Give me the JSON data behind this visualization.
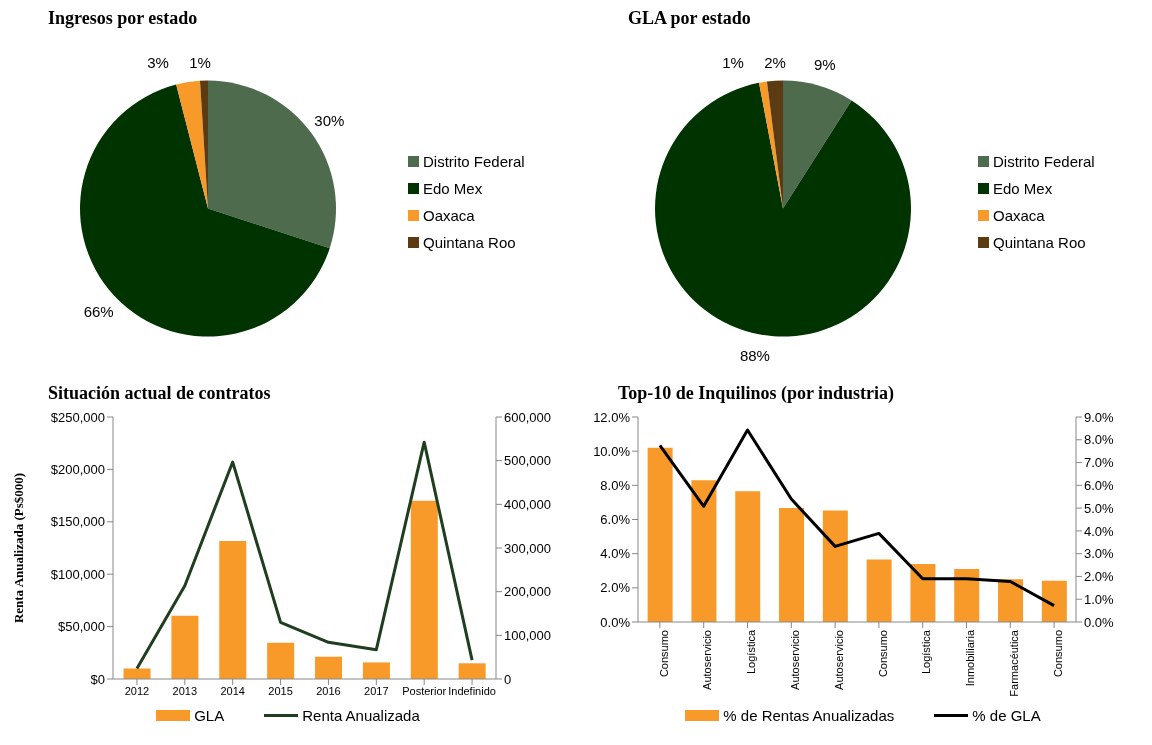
{
  "chart_data": [
    {
      "type": "pie",
      "title": "Ingresos por estado",
      "categories": [
        "Distrito Federal",
        "Edo Mex",
        "Oaxaca",
        "Quintana Roo"
      ],
      "values": [
        30,
        66,
        3,
        1
      ],
      "value_labels": [
        "30%",
        "66%",
        "3%",
        "1%"
      ],
      "colors": [
        "#4e6b4e",
        "#003300",
        "#f79a2a",
        "#5c3a12"
      ],
      "legend": "right"
    },
    {
      "type": "pie",
      "title": "GLA por estado",
      "categories": [
        "Distrito Federal",
        "Edo Mex",
        "Oaxaca",
        "Quintana Roo"
      ],
      "values": [
        9,
        88,
        1,
        2
      ],
      "value_labels": [
        "9%",
        "88%",
        "1%",
        "2%"
      ],
      "colors": [
        "#4e6b4e",
        "#003300",
        "#f79a2a",
        "#5c3a12"
      ],
      "legend": "right"
    },
    {
      "type": "bar",
      "title": "Situación actual de contratos",
      "ylabel": "Renta Anualizada (Ps$000)",
      "categories": [
        "2012",
        "2013",
        "2014",
        "2015",
        "2016",
        "2017",
        "Posterior",
        "Indefinido"
      ],
      "series": [
        {
          "name": "GLA",
          "type": "bar",
          "axis": "y2",
          "color": "#f79a2a",
          "values": [
            24000,
            145000,
            316000,
            83000,
            51000,
            38000,
            408000,
            36000
          ]
        },
        {
          "name": "Renta Anualizada",
          "type": "line",
          "axis": "y",
          "color": "#1f3d1f",
          "values": [
            10000,
            89000,
            207000,
            54000,
            35000,
            28000,
            226000,
            18000
          ]
        }
      ],
      "ylim": [
        0,
        250000
      ],
      "yticks": [
        {
          "value": 0,
          "label": "$0"
        },
        {
          "value": 50000,
          "label": "$50,000"
        },
        {
          "value": 100000,
          "label": "$100,000"
        },
        {
          "value": 150000,
          "label": "$150,000"
        },
        {
          "value": 200000,
          "label": "$200,000"
        },
        {
          "value": 250000,
          "label": "$250,000"
        }
      ],
      "y2lim": [
        0,
        600000
      ],
      "y2ticks": [
        0,
        {
          "value": 100000,
          "label": "100,000"
        },
        {
          "value": 200000,
          "label": "200,000"
        },
        {
          "value": 300000,
          "label": "300,000"
        },
        {
          "value": 400000,
          "label": "400,000"
        },
        {
          "value": 500000,
          "label": "500,000"
        },
        {
          "value": 600000,
          "label": "600,000"
        }
      ],
      "legend": "bottom",
      "grid": false
    },
    {
      "type": "bar",
      "title": "Top-10 de Inquilinos (por industria)",
      "categories": [
        "Consumo",
        "Autoservicio",
        "Logística",
        "Autoservicio",
        "Autoservicio",
        "Consumo",
        "Logística",
        "Inmobiliaria",
        "Farmacéutica",
        "Consumo"
      ],
      "series": [
        {
          "name": "% de Rentas Anualizadas",
          "type": "bar",
          "axis": "y",
          "color": "#f79a2a",
          "values": [
            10.2,
            8.3,
            7.65,
            6.67,
            6.52,
            3.66,
            3.4,
            3.1,
            2.5,
            2.42
          ]
        },
        {
          "name": "% de GLA",
          "type": "line",
          "axis": "y2",
          "color": "#000000",
          "values": [
            7.75,
            5.08,
            8.43,
            5.4,
            3.32,
            3.89,
            1.9,
            1.9,
            1.78,
            0.72
          ]
        }
      ],
      "ylim": [
        0,
        12
      ],
      "yticks": [
        {
          "value": 0,
          "label": "0.0%"
        },
        {
          "value": 2,
          "label": "2.0%"
        },
        {
          "value": 4,
          "label": "4.0%"
        },
        {
          "value": 6,
          "label": "6.0%"
        },
        {
          "value": 8,
          "label": "8.0%"
        },
        {
          "value": 10,
          "label": "10.0%"
        },
        {
          "value": 12,
          "label": "12.0%"
        }
      ],
      "y2lim": [
        0,
        9
      ],
      "y2ticks": [
        {
          "value": 0,
          "label": "0.0%"
        },
        {
          "value": 1,
          "label": "1.0%"
        },
        {
          "value": 2,
          "label": "2.0%"
        },
        {
          "value": 3,
          "label": "3.0%"
        },
        {
          "value": 4,
          "label": "4.0%"
        },
        {
          "value": 5,
          "label": "5.0%"
        },
        {
          "value": 6,
          "label": "6.0%"
        },
        {
          "value": 7,
          "label": "7.0%"
        },
        {
          "value": 8,
          "label": "8.0%"
        },
        {
          "value": 9,
          "label": "9.0%"
        }
      ],
      "legend": "bottom",
      "grid": false
    }
  ]
}
